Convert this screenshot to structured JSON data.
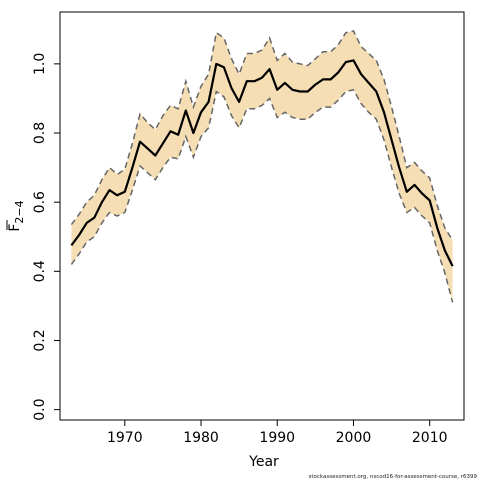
{
  "chart_data": {
    "type": "line",
    "title": "",
    "xlabel": "Year",
    "ylabel_main": "F",
    "ylabel_sub": "2−4",
    "xlim": [
      1961.5,
      2014.5
    ],
    "ylim": [
      -0.03,
      1.15
    ],
    "x_ticks": [
      1970,
      1980,
      1990,
      2000,
      2010
    ],
    "y_ticks": [
      0.0,
      0.2,
      0.4,
      0.6,
      0.8,
      1.0
    ],
    "y_tick_labels": [
      "0.0",
      "0.2",
      "0.4",
      "0.6",
      "0.8",
      "1.0"
    ],
    "x_tick_labels": [
      "1970",
      "1980",
      "1990",
      "2000",
      "2010"
    ],
    "grid": false,
    "colors": {
      "band": "#f5deb3",
      "estimate": "#000000",
      "bounds": "#666666"
    },
    "series": [
      {
        "role": "estimate",
        "x": [
          1963,
          1964,
          1965,
          1966,
          1967,
          1968,
          1969,
          1970,
          1971,
          1972,
          1973,
          1974,
          1975,
          1976,
          1977,
          1978,
          1979,
          1980,
          1981,
          1982,
          1983,
          1984,
          1985,
          1986,
          1987,
          1988,
          1989,
          1990,
          1991,
          1992,
          1993,
          1994,
          1995,
          1996,
          1997,
          1998,
          1999,
          2000,
          2001,
          2002,
          2003,
          2004,
          2005,
          2006,
          2007,
          2008,
          2009,
          2010,
          2011,
          2012,
          2013
        ],
        "y": [
          0.475,
          0.505,
          0.54,
          0.555,
          0.6,
          0.635,
          0.62,
          0.63,
          0.7,
          0.775,
          0.755,
          0.735,
          0.77,
          0.805,
          0.795,
          0.865,
          0.8,
          0.86,
          0.89,
          1.0,
          0.99,
          0.93,
          0.89,
          0.95,
          0.95,
          0.96,
          0.985,
          0.925,
          0.945,
          0.925,
          0.92,
          0.92,
          0.94,
          0.955,
          0.955,
          0.975,
          1.005,
          1.01,
          0.97,
          0.945,
          0.92,
          0.86,
          0.78,
          0.7,
          0.63,
          0.65,
          0.625,
          0.605,
          0.525,
          0.46,
          0.415
        ]
      },
      {
        "role": "upper",
        "x": [
          1963,
          1964,
          1965,
          1966,
          1967,
          1968,
          1969,
          1970,
          1971,
          1972,
          1973,
          1974,
          1975,
          1976,
          1977,
          1978,
          1979,
          1980,
          1981,
          1982,
          1983,
          1984,
          1985,
          1986,
          1987,
          1988,
          1989,
          1990,
          1991,
          1992,
          1993,
          1994,
          1995,
          1996,
          1997,
          1998,
          1999,
          2000,
          2001,
          2002,
          2003,
          2004,
          2005,
          2006,
          2007,
          2008,
          2009,
          2010,
          2011,
          2012,
          2013
        ],
        "y": [
          0.535,
          0.565,
          0.6,
          0.62,
          0.665,
          0.7,
          0.68,
          0.695,
          0.77,
          0.855,
          0.83,
          0.81,
          0.85,
          0.88,
          0.87,
          0.95,
          0.875,
          0.935,
          0.97,
          1.09,
          1.075,
          1.015,
          0.97,
          1.03,
          1.03,
          1.04,
          1.075,
          1.01,
          1.03,
          1.005,
          1.0,
          0.995,
          1.015,
          1.035,
          1.035,
          1.055,
          1.09,
          1.095,
          1.05,
          1.03,
          1.01,
          0.955,
          0.875,
          0.79,
          0.7,
          0.715,
          0.69,
          0.67,
          0.59,
          0.525,
          0.49
        ]
      },
      {
        "role": "lower",
        "x": [
          1963,
          1964,
          1965,
          1966,
          1967,
          1968,
          1969,
          1970,
          1971,
          1972,
          1973,
          1974,
          1975,
          1976,
          1977,
          1978,
          1979,
          1980,
          1981,
          1982,
          1983,
          1984,
          1985,
          1986,
          1987,
          1988,
          1989,
          1990,
          1991,
          1992,
          1993,
          1994,
          1995,
          1996,
          1997,
          1998,
          1999,
          2000,
          2001,
          2002,
          2003,
          2004,
          2005,
          2006,
          2007,
          2008,
          2009,
          2010,
          2011,
          2012,
          2013
        ],
        "y": [
          0.42,
          0.45,
          0.485,
          0.5,
          0.54,
          0.57,
          0.56,
          0.57,
          0.635,
          0.705,
          0.685,
          0.665,
          0.7,
          0.73,
          0.725,
          0.79,
          0.73,
          0.79,
          0.815,
          0.92,
          0.905,
          0.85,
          0.815,
          0.87,
          0.87,
          0.88,
          0.9,
          0.845,
          0.86,
          0.845,
          0.84,
          0.84,
          0.86,
          0.875,
          0.875,
          0.895,
          0.92,
          0.925,
          0.885,
          0.86,
          0.84,
          0.78,
          0.7,
          0.625,
          0.57,
          0.585,
          0.56,
          0.54,
          0.46,
          0.395,
          0.31
        ]
      }
    ]
  },
  "footnote": "stockassessment.org, nscod16-for-assessment-course, r6399"
}
